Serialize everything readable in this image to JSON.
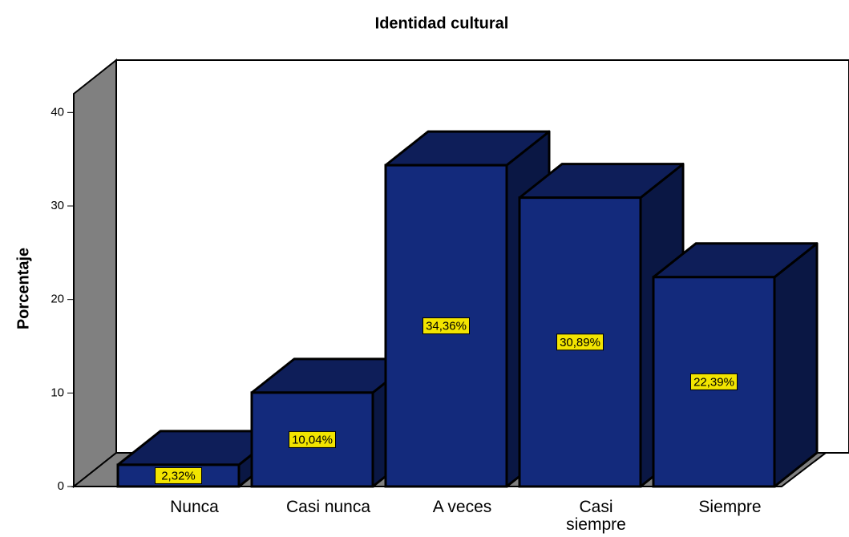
{
  "chart_data": {
    "type": "bar3d",
    "title": "Identidad cultural",
    "y_label": "Porcentaje",
    "categories": [
      "Nunca",
      "Casi nunca",
      "A veces",
      "Casi siempre",
      "Siempre"
    ],
    "values": [
      2.32,
      10.04,
      34.36,
      30.89,
      22.39
    ],
    "value_labels": [
      "2,32%",
      "10,04%",
      "34,36%",
      "30,89%",
      "22,39%"
    ],
    "color": "#132a7c",
    "ylim": [
      0,
      42
    ],
    "yticks": [
      0,
      10,
      20,
      30,
      40
    ]
  }
}
